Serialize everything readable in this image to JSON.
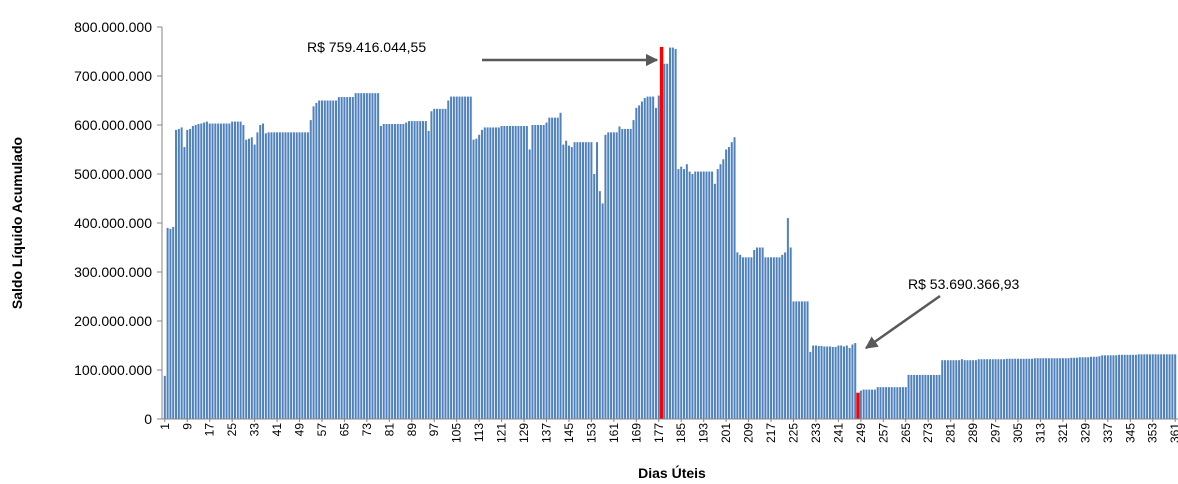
{
  "chart_data": {
    "type": "bar",
    "color": "#4f81bd",
    "xlabel": "Dias Úteis",
    "ylabel": "Saldo Líquido Acumulado",
    "xlim": [
      0,
      362
    ],
    "xticks": [
      1,
      9,
      17,
      25,
      33,
      41,
      49,
      57,
      65,
      73,
      81,
      89,
      97,
      105,
      113,
      121,
      129,
      137,
      145,
      153,
      161,
      169,
      177,
      185,
      193,
      201,
      209,
      217,
      225,
      233,
      241,
      249,
      257,
      265,
      273,
      281,
      289,
      297,
      305,
      313,
      321,
      329,
      337,
      345,
      353,
      361
    ],
    "ylim": [
      0,
      800000000
    ],
    "yticks": [
      0,
      {
        "value": 100000000,
        "label": "100.000.000"
      },
      {
        "value": 200000000,
        "label": "200.000.000"
      },
      {
        "value": 300000000,
        "label": "300.000.000"
      },
      {
        "value": 400000000,
        "label": "400.000.000"
      },
      {
        "value": 500000000,
        "label": "500.000.000"
      },
      {
        "value": 600000000,
        "label": "600.000.000"
      },
      {
        "value": 700000000,
        "label": "700.000.000"
      },
      {
        "value": 800000000,
        "label": "800.000.000"
      }
    ],
    "annotations": [
      {
        "text": "R$ 759.416.044,55",
        "x": 178,
        "color": "#ff0000"
      },
      {
        "text": "R$ 53.690.366,93",
        "x": 248,
        "color": "#ff0000"
      }
    ],
    "x": [
      1,
      2,
      3,
      4,
      5,
      6,
      7,
      8,
      9,
      10,
      11,
      12,
      13,
      14,
      15,
      16,
      17,
      18,
      19,
      20,
      21,
      22,
      23,
      24,
      25,
      26,
      27,
      28,
      29,
      30,
      31,
      32,
      33,
      34,
      35,
      36,
      37,
      38,
      39,
      40,
      41,
      42,
      43,
      44,
      45,
      46,
      47,
      48,
      49,
      50,
      51,
      52,
      53,
      54,
      55,
      56,
      57,
      58,
      59,
      60,
      61,
      62,
      63,
      64,
      65,
      66,
      67,
      68,
      69,
      70,
      71,
      72,
      73,
      74,
      75,
      76,
      77,
      78,
      79,
      80,
      81,
      82,
      83,
      84,
      85,
      86,
      87,
      88,
      89,
      90,
      91,
      92,
      93,
      94,
      95,
      96,
      97,
      98,
      99,
      100,
      101,
      102,
      103,
      104,
      105,
      106,
      107,
      108,
      109,
      110,
      111,
      112,
      113,
      114,
      115,
      116,
      117,
      118,
      119,
      120,
      121,
      122,
      123,
      124,
      125,
      126,
      127,
      128,
      129,
      130,
      131,
      132,
      133,
      134,
      135,
      136,
      137,
      138,
      139,
      140,
      141,
      142,
      143,
      144,
      145,
      146,
      147,
      148,
      149,
      150,
      151,
      152,
      153,
      154,
      155,
      156,
      157,
      158,
      159,
      160,
      161,
      162,
      163,
      164,
      165,
      166,
      167,
      168,
      169,
      170,
      171,
      172,
      173,
      174,
      175,
      176,
      177,
      178,
      179,
      180,
      181,
      182,
      183,
      184,
      185,
      186,
      187,
      188,
      189,
      190,
      191,
      192,
      193,
      194,
      195,
      196,
      197,
      198,
      199,
      200,
      201,
      202,
      203,
      204,
      205,
      206,
      207,
      208,
      209,
      210,
      211,
      212,
      213,
      214,
      215,
      216,
      217,
      218,
      219,
      220,
      221,
      222,
      223,
      224,
      225,
      226,
      227,
      228,
      229,
      230,
      231,
      232,
      233,
      234,
      235,
      236,
      237,
      238,
      239,
      240,
      241,
      242,
      243,
      244,
      245,
      246,
      247,
      248,
      249,
      250,
      251,
      252,
      253,
      254,
      255,
      256,
      257,
      258,
      259,
      260,
      261,
      262,
      263,
      264,
      265,
      266,
      267,
      268,
      269,
      270,
      271,
      272,
      273,
      274,
      275,
      276,
      277,
      278,
      279,
      280,
      281,
      282,
      283,
      284,
      285,
      286,
      287,
      288,
      289,
      290,
      291,
      292,
      293,
      294,
      295,
      296,
      297,
      298,
      299,
      300,
      301,
      302,
      303,
      304,
      305,
      306,
      307,
      308,
      309,
      310,
      311,
      312,
      313,
      314,
      315,
      316,
      317,
      318,
      319,
      320,
      321,
      322,
      323,
      324,
      325,
      326,
      327,
      328,
      329,
      330,
      331,
      332,
      333,
      334,
      335,
      336,
      337,
      338,
      339,
      340,
      341,
      342,
      343,
      344,
      345,
      346,
      347,
      348,
      349,
      350,
      351,
      352,
      353,
      354,
      355,
      356,
      357,
      358,
      359,
      360,
      361
    ],
    "values": [
      88000000,
      390000000,
      388000000,
      392000000,
      590000000,
      592000000,
      595000000,
      555000000,
      590000000,
      592000000,
      598000000,
      600000000,
      602000000,
      603000000,
      605000000,
      607000000,
      603000000,
      603000000,
      603000000,
      603000000,
      603000000,
      603000000,
      603000000,
      603000000,
      607000000,
      607000000,
      607000000,
      607000000,
      600000000,
      570000000,
      572000000,
      575000000,
      560000000,
      585000000,
      600000000,
      603000000,
      583000000,
      585000000,
      585000000,
      585000000,
      585000000,
      585000000,
      585000000,
      585000000,
      585000000,
      585000000,
      585000000,
      585000000,
      585000000,
      585000000,
      585000000,
      585000000,
      610000000,
      638000000,
      645000000,
      650000000,
      650000000,
      650000000,
      650000000,
      650000000,
      650000000,
      650000000,
      657000000,
      657000000,
      657000000,
      657000000,
      657000000,
      657000000,
      665000000,
      665000000,
      665000000,
      665000000,
      665000000,
      665000000,
      665000000,
      665000000,
      665000000,
      598000000,
      602000000,
      602000000,
      602000000,
      602000000,
      602000000,
      602000000,
      602000000,
      602000000,
      605000000,
      608000000,
      608000000,
      608000000,
      608000000,
      608000000,
      608000000,
      608000000,
      588000000,
      628000000,
      633000000,
      633000000,
      633000000,
      633000000,
      633000000,
      650000000,
      658000000,
      658000000,
      658000000,
      658000000,
      658000000,
      658000000,
      658000000,
      658000000,
      570000000,
      572000000,
      580000000,
      590000000,
      595000000,
      595000000,
      595000000,
      595000000,
      595000000,
      595000000,
      598000000,
      598000000,
      598000000,
      598000000,
      598000000,
      598000000,
      598000000,
      598000000,
      598000000,
      598000000,
      550000000,
      600000000,
      600000000,
      600000000,
      600000000,
      600000000,
      605000000,
      615000000,
      615000000,
      615000000,
      615000000,
      625000000,
      560000000,
      568000000,
      558000000,
      555000000,
      565000000,
      565000000,
      565000000,
      565000000,
      565000000,
      565000000,
      565000000,
      500000000,
      565000000,
      465000000,
      440000000,
      580000000,
      585000000,
      585000000,
      585000000,
      585000000,
      597000000,
      592000000,
      592000000,
      592000000,
      592000000,
      610000000,
      635000000,
      640000000,
      648000000,
      655000000,
      658000000,
      658000000,
      658000000,
      635000000,
      660000000,
      759416044.55,
      725000000,
      725000000,
      758000000,
      758000000,
      755000000,
      510000000,
      515000000,
      510000000,
      520000000,
      505000000,
      500000000,
      505000000,
      505000000,
      505000000,
      505000000,
      505000000,
      505000000,
      505000000,
      480000000,
      510000000,
      520000000,
      530000000,
      550000000,
      555000000,
      565000000,
      575000000,
      340000000,
      335000000,
      330000000,
      330000000,
      330000000,
      330000000,
      345000000,
      350000000,
      350000000,
      350000000,
      330000000,
      330000000,
      330000000,
      330000000,
      330000000,
      330000000,
      335000000,
      340000000,
      410000000,
      350000000,
      240000000,
      240000000,
      240000000,
      240000000,
      240000000,
      240000000,
      137000000,
      150000000,
      150000000,
      149000000,
      149000000,
      148000000,
      148000000,
      148000000,
      147000000,
      147000000,
      150000000,
      150000000,
      148000000,
      150000000,
      145000000,
      152000000,
      155000000,
      53690366.93,
      58000000,
      60000000,
      60000000,
      60000000,
      60000000,
      60000000,
      65000000,
      65000000,
      65000000,
      65000000,
      65000000,
      65000000,
      65000000,
      65000000,
      65000000,
      65000000,
      65000000,
      90000000,
      90000000,
      90000000,
      90000000,
      90000000,
      90000000,
      90000000,
      90000000,
      90000000,
      90000000,
      90000000,
      90000000,
      120000000,
      120000000,
      120000000,
      120000000,
      120000000,
      120000000,
      120000000,
      122000000,
      120000000,
      120000000,
      120000000,
      120000000,
      120000000,
      122000000,
      122000000,
      122000000,
      122000000,
      122000000,
      122000000,
      122000000,
      122000000,
      122000000,
      122000000,
      123000000,
      123000000,
      123000000,
      123000000,
      123000000,
      123000000,
      123000000,
      123000000,
      123000000,
      123000000,
      124000000,
      124000000,
      124000000,
      124000000,
      124000000,
      124000000,
      124000000,
      124000000,
      124000000,
      124000000,
      124000000,
      124000000,
      124000000,
      125000000,
      125000000,
      125000000,
      126000000,
      126000000,
      126000000,
      126000000,
      127000000,
      127000000,
      127000000,
      128000000,
      130000000,
      130000000,
      130000000,
      130000000,
      130000000,
      130000000,
      131000000,
      131000000,
      131000000,
      131000000,
      131000000,
      131000000,
      131000000,
      132000000,
      132000000,
      132000000,
      132000000,
      132000000,
      132000000,
      132000000,
      132000000,
      132000000,
      132000000,
      132000000,
      132000000,
      132000000,
      132000000
    ]
  }
}
